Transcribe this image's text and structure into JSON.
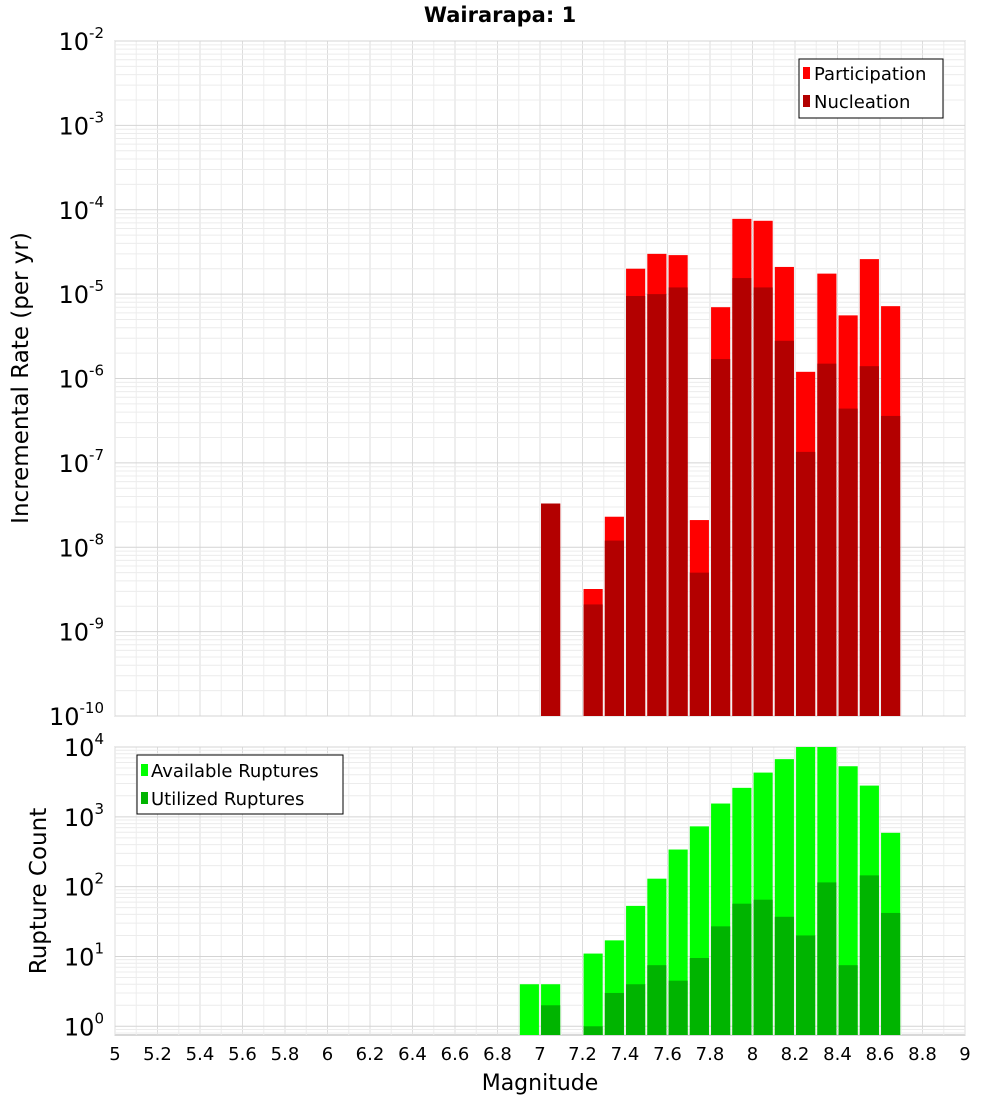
{
  "chart_data": [
    {
      "type": "bar",
      "title": "Wairarapa: 1",
      "xlabel": "Magnitude",
      "ylabel": "Incremental Rate (per yr)",
      "log_y": true,
      "xlim": [
        5,
        9
      ],
      "ylim": [
        1e-10,
        0.01
      ],
      "y_ticks": [
        {
          "base": "10",
          "exp": "-2"
        },
        {
          "base": "10",
          "exp": "-3"
        },
        {
          "base": "10",
          "exp": "-4"
        },
        {
          "base": "10",
          "exp": "-5"
        },
        {
          "base": "10",
          "exp": "-6"
        },
        {
          "base": "10",
          "exp": "-7"
        },
        {
          "base": "10",
          "exp": "-8"
        },
        {
          "base": "10",
          "exp": "-9"
        },
        {
          "base": "10",
          "exp": "-10"
        }
      ],
      "legend_position": "top-right",
      "grid": true,
      "series": [
        {
          "name": "Participation",
          "color": "#ff0000",
          "points": [
            {
              "x": 7.05,
              "y": 3.3e-08
            },
            {
              "x": 7.25,
              "y": 3.2e-09
            },
            {
              "x": 7.35,
              "y": 2.3e-08
            },
            {
              "x": 7.45,
              "y": 2e-05
            },
            {
              "x": 7.55,
              "y": 3e-05
            },
            {
              "x": 7.65,
              "y": 2.9e-05
            },
            {
              "x": 7.75,
              "y": 2.1e-08
            },
            {
              "x": 7.85,
              "y": 7e-06
            },
            {
              "x": 7.95,
              "y": 7.8e-05
            },
            {
              "x": 8.05,
              "y": 7.4e-05
            },
            {
              "x": 8.15,
              "y": 2.1e-05
            },
            {
              "x": 8.25,
              "y": 1.2e-06
            },
            {
              "x": 8.35,
              "y": 1.75e-05
            },
            {
              "x": 8.45,
              "y": 5.6e-06
            },
            {
              "x": 8.55,
              "y": 2.6e-05
            },
            {
              "x": 8.65,
              "y": 7.2e-06
            }
          ]
        },
        {
          "name": "Nucleation",
          "color": "#b30000",
          "points": [
            {
              "x": 7.05,
              "y": 3.3e-08
            },
            {
              "x": 7.25,
              "y": 2.1e-09
            },
            {
              "x": 7.35,
              "y": 1.2e-08
            },
            {
              "x": 7.45,
              "y": 9.5e-06
            },
            {
              "x": 7.55,
              "y": 1e-05
            },
            {
              "x": 7.65,
              "y": 1.2e-05
            },
            {
              "x": 7.75,
              "y": 5e-09
            },
            {
              "x": 7.85,
              "y": 1.7e-06
            },
            {
              "x": 7.95,
              "y": 1.55e-05
            },
            {
              "x": 8.05,
              "y": 1.2e-05
            },
            {
              "x": 8.15,
              "y": 2.8e-06
            },
            {
              "x": 8.25,
              "y": 1.35e-07
            },
            {
              "x": 8.35,
              "y": 1.5e-06
            },
            {
              "x": 8.45,
              "y": 4.4e-07
            },
            {
              "x": 8.55,
              "y": 1.4e-06
            },
            {
              "x": 8.65,
              "y": 3.6e-07
            }
          ]
        }
      ]
    },
    {
      "type": "bar",
      "xlabel": "Magnitude",
      "ylabel": "Rupture Count",
      "log_y": true,
      "xlim": [
        5,
        9
      ],
      "ylim": [
        0.75,
        10000
      ],
      "x_ticks": [
        "5",
        "5.2",
        "5.4",
        "5.6",
        "5.8",
        "6",
        "6.2",
        "6.4",
        "6.6",
        "6.8",
        "7",
        "7.2",
        "7.4",
        "7.6",
        "7.8",
        "8",
        "8.2",
        "8.4",
        "8.6",
        "8.8",
        "9"
      ],
      "y_ticks": [
        {
          "base": "10",
          "exp": "4"
        },
        {
          "base": "10",
          "exp": "3"
        },
        {
          "base": "10",
          "exp": "2"
        },
        {
          "base": "10",
          "exp": "1"
        },
        {
          "base": "10",
          "exp": "0"
        }
      ],
      "legend_position": "top-left",
      "grid": true,
      "series": [
        {
          "name": "Available Ruptures",
          "color": "#00ff00",
          "points": [
            {
              "x": 6.95,
              "y": 4
            },
            {
              "x": 7.05,
              "y": 4
            },
            {
              "x": 7.25,
              "y": 11
            },
            {
              "x": 7.35,
              "y": 17
            },
            {
              "x": 7.45,
              "y": 53
            },
            {
              "x": 7.55,
              "y": 130
            },
            {
              "x": 7.65,
              "y": 340
            },
            {
              "x": 7.75,
              "y": 730
            },
            {
              "x": 7.85,
              "y": 1550
            },
            {
              "x": 7.95,
              "y": 2600
            },
            {
              "x": 8.05,
              "y": 4300
            },
            {
              "x": 8.15,
              "y": 6700
            },
            {
              "x": 8.25,
              "y": 10000
            },
            {
              "x": 8.35,
              "y": 10000
            },
            {
              "x": 8.45,
              "y": 5300
            },
            {
              "x": 8.55,
              "y": 2800
            },
            {
              "x": 8.65,
              "y": 590
            }
          ]
        },
        {
          "name": "Utilized Ruptures",
          "color": "#00b400",
          "points": [
            {
              "x": 7.05,
              "y": 2
            },
            {
              "x": 7.25,
              "y": 1
            },
            {
              "x": 7.35,
              "y": 3
            },
            {
              "x": 7.45,
              "y": 4
            },
            {
              "x": 7.55,
              "y": 7.5
            },
            {
              "x": 7.65,
              "y": 4.5
            },
            {
              "x": 7.75,
              "y": 9.5
            },
            {
              "x": 7.85,
              "y": 27
            },
            {
              "x": 7.95,
              "y": 57
            },
            {
              "x": 8.05,
              "y": 65
            },
            {
              "x": 8.15,
              "y": 37
            },
            {
              "x": 8.25,
              "y": 20
            },
            {
              "x": 8.35,
              "y": 115
            },
            {
              "x": 8.45,
              "y": 7.5
            },
            {
              "x": 8.55,
              "y": 145
            },
            {
              "x": 8.65,
              "y": 42
            }
          ]
        }
      ]
    }
  ]
}
